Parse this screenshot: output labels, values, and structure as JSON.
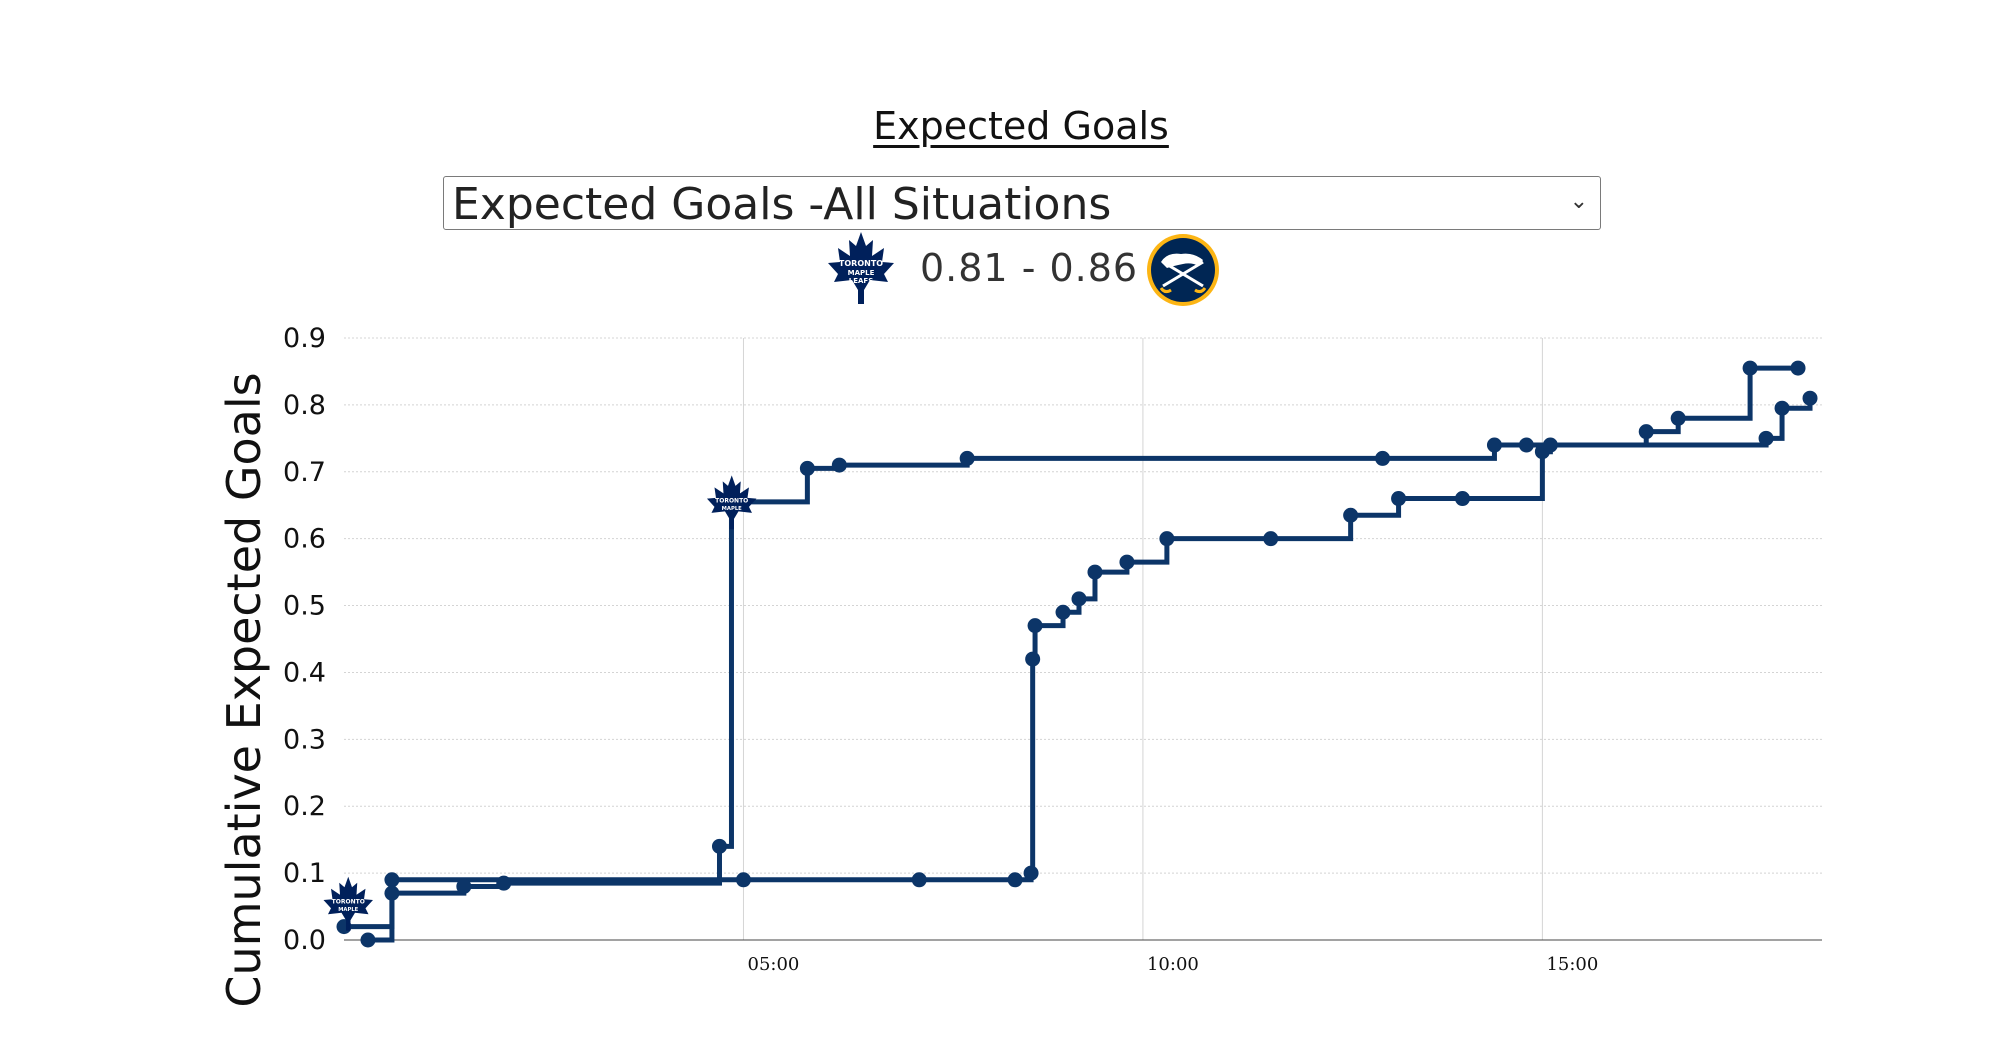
{
  "header": {
    "title": "Expected Goals",
    "selector_value": "Expected Goals -All Situations",
    "score": "0.81 - 0.86"
  },
  "teams": {
    "home": {
      "icon": "maple-leaf-icon",
      "color": "#00205b"
    },
    "away": {
      "icon": "buffalo-sabres-icon",
      "color": "#002654",
      "accent": "#fcb514"
    }
  },
  "chart_data": {
    "type": "line",
    "line_shape": "step",
    "title": "",
    "xlabel": "",
    "ylabel": "Cumulative Expected Goals",
    "xlim_minutes": [
      0,
      18.5
    ],
    "ylim": [
      0,
      0.9
    ],
    "yticks": [
      "0.0",
      "0.1",
      "0.2",
      "0.3",
      "0.4",
      "0.5",
      "0.6",
      "0.7",
      "0.8",
      "0.9"
    ],
    "xticks": [
      {
        "label": "05:00",
        "minutes": 5
      },
      {
        "label": "10:00",
        "minutes": 10
      },
      {
        "label": "15:00",
        "minutes": 15
      }
    ],
    "grid": true,
    "line_color": "#0c3568",
    "series": [
      {
        "team": "home",
        "points": [
          [
            0.0,
            0.02
          ],
          [
            0.6,
            0.09
          ],
          [
            5.0,
            0.09
          ],
          [
            7.2,
            0.09
          ],
          [
            8.4,
            0.09
          ],
          [
            8.6,
            0.1
          ],
          [
            8.62,
            0.42
          ],
          [
            8.65,
            0.47
          ],
          [
            9.0,
            0.49
          ],
          [
            9.2,
            0.51
          ],
          [
            9.4,
            0.55
          ],
          [
            9.8,
            0.565
          ],
          [
            10.3,
            0.6
          ],
          [
            11.6,
            0.6
          ],
          [
            12.6,
            0.635
          ],
          [
            13.2,
            0.66
          ],
          [
            14.0,
            0.66
          ],
          [
            15.0,
            0.73
          ],
          [
            15.1,
            0.74
          ],
          [
            17.8,
            0.75
          ],
          [
            18.0,
            0.795
          ],
          [
            18.35,
            0.81
          ]
        ],
        "marker_icon_at": [
          8.6,
          0.1
        ]
      },
      {
        "team": "away",
        "points": [
          [
            0.3,
            0.0
          ],
          [
            0.6,
            0.07
          ],
          [
            1.5,
            0.08
          ],
          [
            2.0,
            0.085
          ],
          [
            4.7,
            0.14
          ],
          [
            4.85,
            0.655
          ],
          [
            5.8,
            0.705
          ],
          [
            6.2,
            0.71
          ],
          [
            7.8,
            0.72
          ],
          [
            13.0,
            0.72
          ],
          [
            14.4,
            0.74
          ],
          [
            14.8,
            0.74
          ],
          [
            16.3,
            0.76
          ],
          [
            16.7,
            0.78
          ],
          [
            17.6,
            0.855
          ],
          [
            18.2,
            0.855
          ]
        ],
        "marker_icon_at": [
          4.85,
          0.655
        ]
      }
    ]
  }
}
